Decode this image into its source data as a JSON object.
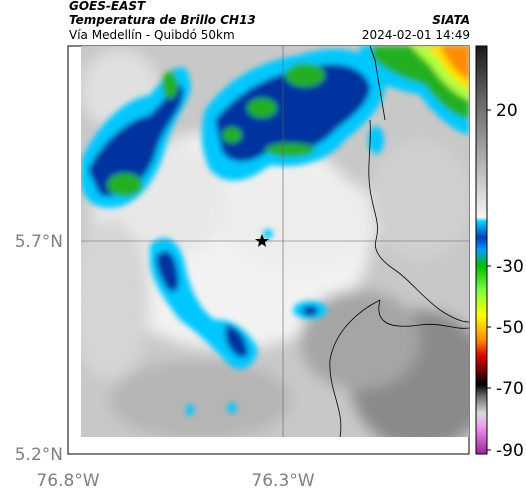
{
  "header": {
    "satellite": "GOES-EAST",
    "product": "Temperatura de Brillo CH13",
    "region": "Vía Medellín - Quibdó 50km",
    "org": "SIATA",
    "datetime": "2024-02-01 14:49"
  },
  "axes": {
    "lat_labels": [
      "5.7°N",
      "5.2°N"
    ],
    "lon_labels": [
      "76.8°W",
      "76.3°W"
    ]
  },
  "colorbar": {
    "ticks": [
      "20",
      "-30",
      "-50",
      "-70",
      "-90"
    ],
    "range_celsius": [
      -95,
      35
    ],
    "colors": {
      "cold_magenta": "#c040c0",
      "black": "#000000",
      "red": "#e00000",
      "orange": "#ff8c00",
      "yellow": "#ffff00",
      "green": "#00c000",
      "cyan": "#00c8ff",
      "blue": "#0030a0",
      "light_gray": "#f0f0f0",
      "dark_gray": "#404040"
    }
  },
  "map": {
    "marker": "star-icon",
    "grid_lines": true,
    "features": [
      "coastline",
      "country-border"
    ]
  }
}
